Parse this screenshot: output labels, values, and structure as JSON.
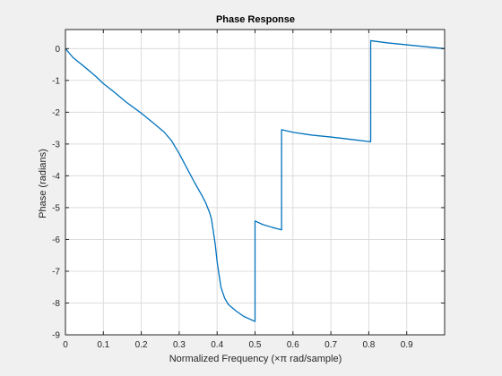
{
  "chart_data": {
    "type": "line",
    "title": "Phase Response",
    "xlabel": "Normalized Frequency  (×π rad/sample)",
    "ylabel": "Phase (radians)",
    "xlim": [
      0,
      1
    ],
    "ylim": [
      -9,
      0.6
    ],
    "grid": true,
    "x_ticks": [
      0,
      0.1,
      0.2,
      0.3,
      0.4,
      0.5,
      0.6,
      0.7,
      0.8,
      0.9
    ],
    "x_tick_labels": [
      "0",
      "0.1",
      "0.2",
      "0.3",
      "0.4",
      "0.5",
      "0.6",
      "0.7",
      "0.8",
      "0.9"
    ],
    "y_ticks": [
      0,
      -1,
      -2,
      -3,
      -4,
      -5,
      -6,
      -7,
      -8,
      -9
    ],
    "y_tick_labels": [
      "0",
      "-1",
      "-2",
      "-3",
      "-4",
      "-5",
      "-6",
      "-7",
      "-8",
      "-9"
    ],
    "line_color": "#0072bd",
    "series": [
      {
        "x": [
          0,
          0.02,
          0.05,
          0.08,
          0.1,
          0.13,
          0.16,
          0.2,
          0.23,
          0.26,
          0.28,
          0.3,
          0.32,
          0.34,
          0.36,
          0.37,
          0.38,
          0.385,
          0.39,
          0.395,
          0.4,
          0.405,
          0.41,
          0.42,
          0.43,
          0.45,
          0.47,
          0.5,
          0.5,
          0.52,
          0.545,
          0.57,
          0.57,
          0.6,
          0.65,
          0.7,
          0.75,
          0.805,
          0.805,
          0.85,
          0.9,
          0.95,
          1.0
        ],
        "y": [
          0,
          -0.28,
          -0.57,
          -0.87,
          -1.1,
          -1.38,
          -1.68,
          -2.03,
          -2.32,
          -2.62,
          -2.9,
          -3.3,
          -3.75,
          -4.2,
          -4.62,
          -4.85,
          -5.15,
          -5.35,
          -5.75,
          -6.15,
          -6.7,
          -7.1,
          -7.5,
          -7.85,
          -8.05,
          -8.25,
          -8.42,
          -8.58,
          -5.42,
          -5.53,
          -5.62,
          -5.7,
          -2.55,
          -2.63,
          -2.72,
          -2.78,
          -2.85,
          -2.93,
          0.25,
          0.18,
          0.12,
          0.06,
          0.0
        ]
      }
    ]
  }
}
